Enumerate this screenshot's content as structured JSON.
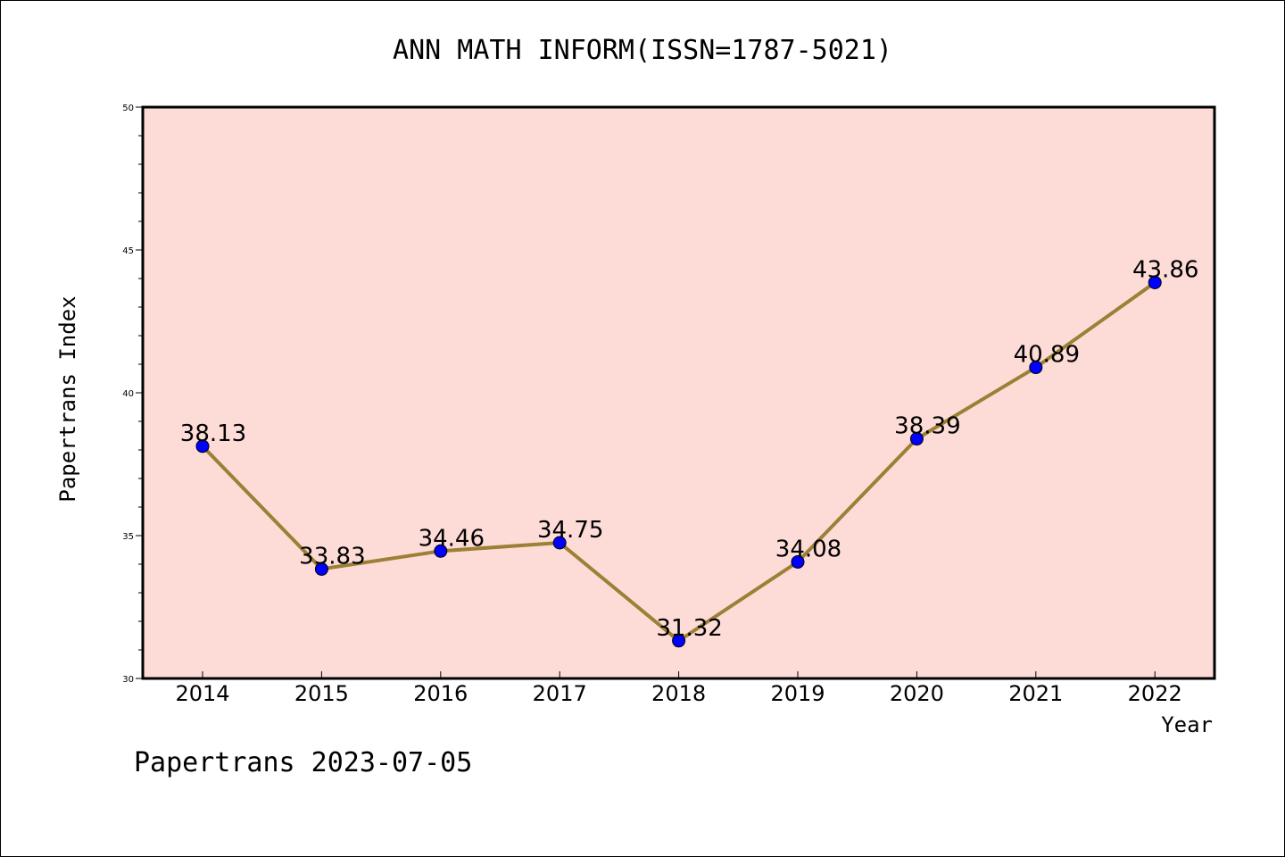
{
  "chart_data": {
    "type": "line",
    "title": "ANN MATH INFORM(ISSN=1787-5021)",
    "xlabel": "Year",
    "ylabel": "Papertrans Index",
    "categories": [
      "2014",
      "2015",
      "2016",
      "2017",
      "2018",
      "2019",
      "2020",
      "2021",
      "2022"
    ],
    "series": [
      {
        "values": [
          38.13,
          33.83,
          34.46,
          34.75,
          31.32,
          34.08,
          38.39,
          40.89,
          43.86
        ],
        "labels": [
          "38.13",
          "33.83",
          "34.46",
          "34.75",
          "31.32",
          "34.08",
          "38.39",
          "40.89",
          "43.86"
        ]
      }
    ],
    "ylim": [
      30,
      50
    ],
    "yticks": [
      "30",
      "35",
      "40",
      "45",
      "50"
    ],
    "grid": false,
    "legend": "none",
    "colors": {
      "line": "#9b8035",
      "marker": "#0000ff",
      "plot_background": "#fddcd8"
    }
  },
  "footer": "Papertrans 2023-07-05"
}
